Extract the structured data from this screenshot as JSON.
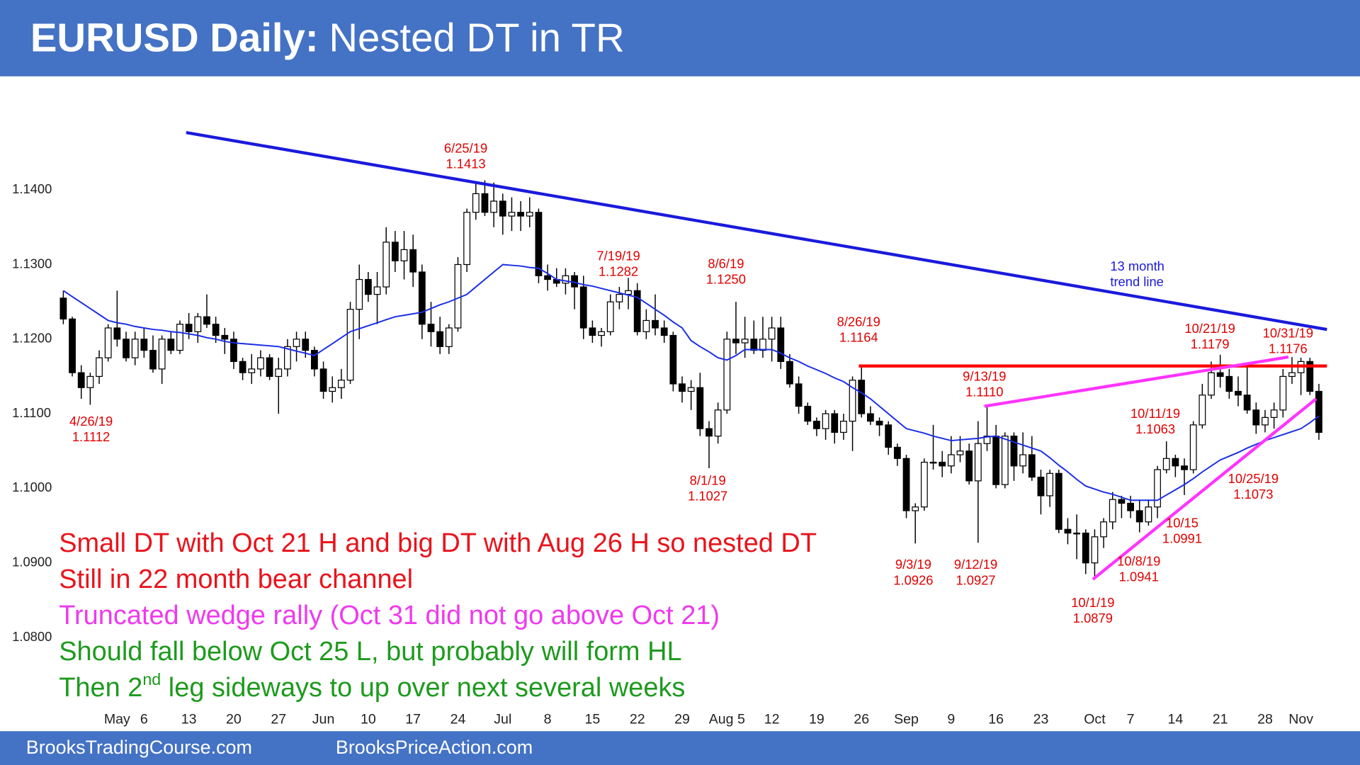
{
  "header": {
    "title_bold": "EURUSD Daily:",
    "title": "Nested DT in TR"
  },
  "footer": {
    "left": "BrooksTradingCourse.com",
    "right": "BrooksPriceAction.com"
  },
  "chart_data": {
    "type": "candlestick",
    "ylim": [
      1.071,
      1.154
    ],
    "yticks": [
      {
        "value": 1.14,
        "label": "1.1400"
      },
      {
        "value": 1.13,
        "label": "1.1300"
      },
      {
        "value": 1.12,
        "label": "1.1200"
      },
      {
        "value": 1.11,
        "label": "1.1100"
      },
      {
        "value": 1.1,
        "label": "1.1000"
      },
      {
        "value": 1.09,
        "label": "1.0900"
      },
      {
        "value": 1.08,
        "label": "1.0800"
      }
    ],
    "categories": [
      null,
      null,
      null,
      null,
      null,
      null,
      "May",
      null,
      null,
      "6",
      null,
      null,
      null,
      null,
      "13",
      null,
      null,
      null,
      null,
      "20",
      null,
      null,
      null,
      null,
      "27",
      null,
      null,
      null,
      null,
      "Jun",
      null,
      null,
      null,
      null,
      "10",
      null,
      null,
      null,
      null,
      "17",
      null,
      null,
      null,
      null,
      "24",
      null,
      null,
      null,
      null,
      "Jul",
      null,
      null,
      null,
      null,
      "8",
      null,
      null,
      null,
      null,
      "15",
      null,
      null,
      null,
      null,
      "22",
      null,
      null,
      null,
      null,
      "29",
      null,
      null,
      null,
      null,
      "Aug 5",
      null,
      null,
      null,
      null,
      "12",
      null,
      null,
      null,
      null,
      "19",
      null,
      null,
      null,
      null,
      "26",
      null,
      null,
      null,
      null,
      "Sep",
      null,
      null,
      null,
      null,
      "9",
      null,
      null,
      null,
      null,
      "16",
      null,
      null,
      null,
      null,
      "23",
      null,
      null,
      null,
      null,
      null,
      "Oct",
      null,
      null,
      null,
      "7",
      null,
      null,
      null,
      null,
      "14",
      null,
      null,
      null,
      null,
      "21",
      null,
      null,
      null,
      null,
      "28",
      null,
      null,
      null,
      "Nov",
      null,
      null
    ],
    "open": [
      1.1255,
      1.1227,
      1.1155,
      1.1135,
      1.115,
      1.1175,
      1.1215,
      1.12,
      1.1175,
      1.12,
      1.1185,
      1.116,
      1.12,
      1.1185,
      1.122,
      1.121,
      1.123,
      1.122,
      1.1205,
      1.12,
      1.117,
      1.1155,
      1.116,
      1.1175,
      1.115,
      1.116,
      1.119,
      1.12,
      1.1185,
      1.116,
      1.113,
      1.1135,
      1.1145,
      1.124,
      1.128,
      1.126,
      1.127,
      1.133,
      1.1305,
      1.132,
      1.129,
      1.122,
      1.121,
      1.119,
      1.1215,
      1.13,
      1.137,
      1.1395,
      1.137,
      1.1385,
      1.1365,
      1.137,
      1.1365,
      1.137,
      1.1285,
      1.128,
      1.1275,
      1.1285,
      1.127,
      1.1215,
      1.1205,
      1.121,
      1.125,
      1.126,
      1.1265,
      1.121,
      1.1225,
      1.1215,
      1.1205,
      1.114,
      1.113,
      1.1135,
      1.108,
      1.107,
      1.1105,
      1.12,
      1.1195,
      1.12,
      1.1185,
      1.12,
      1.1215,
      1.117,
      1.114,
      1.111,
      1.109,
      1.108,
      1.11,
      1.1075,
      1.109,
      1.1145,
      1.11,
      1.109,
      1.1085,
      1.1055,
      1.104,
      1.097,
      1.0975,
      1.1035,
      1.1035,
      1.103,
      1.1045,
      1.105,
      1.101,
      1.106,
      1.107,
      1.1005,
      1.107,
      1.103,
      1.1045,
      1.1015,
      1.099,
      1.102,
      1.0945,
      1.094,
      1.094,
      1.09,
      1.0935,
      1.0955,
      1.0985,
      1.098,
      1.097,
      1.0955,
      1.0975,
      1.1025,
      1.104,
      1.103,
      1.1025,
      1.1085,
      1.1125,
      1.1155,
      1.115,
      1.113,
      1.1125,
      1.1105,
      1.1085,
      1.1095,
      1.1105,
      1.115,
      1.1155,
      1.117,
      1.113
    ],
    "high": [
      1.1265,
      1.123,
      1.1165,
      1.1155,
      1.1185,
      1.122,
      1.1265,
      1.121,
      1.121,
      1.1215,
      1.1205,
      1.1205,
      1.121,
      1.1225,
      1.1235,
      1.1235,
      1.126,
      1.123,
      1.1215,
      1.121,
      1.1175,
      1.118,
      1.1185,
      1.118,
      1.1175,
      1.12,
      1.121,
      1.121,
      1.119,
      1.117,
      1.115,
      1.116,
      1.125,
      1.13,
      1.129,
      1.129,
      1.135,
      1.1345,
      1.1345,
      1.134,
      1.13,
      1.125,
      1.123,
      1.122,
      1.131,
      1.1375,
      1.141,
      1.1413,
      1.141,
      1.1395,
      1.139,
      1.1385,
      1.139,
      1.1375,
      1.13,
      1.1295,
      1.1295,
      1.129,
      1.1285,
      1.1225,
      1.1215,
      1.126,
      1.127,
      1.1282,
      1.1275,
      1.124,
      1.126,
      1.1225,
      1.121,
      1.115,
      1.1145,
      1.1155,
      1.109,
      1.1115,
      1.121,
      1.125,
      1.123,
      1.1225,
      1.123,
      1.123,
      1.123,
      1.118,
      1.115,
      1.1115,
      1.1095,
      1.1105,
      1.1105,
      1.11,
      1.115,
      1.1164,
      1.111,
      1.1095,
      1.109,
      1.106,
      1.1045,
      1.098,
      1.104,
      1.1085,
      1.105,
      1.107,
      1.107,
      1.106,
      1.109,
      1.111,
      1.1085,
      1.1075,
      1.1075,
      1.1075,
      1.107,
      1.1025,
      1.1025,
      1.1025,
      1.096,
      1.0965,
      1.0945,
      1.0945,
      1.096,
      1.0995,
      1.099,
      1.099,
      1.0985,
      1.0985,
      1.103,
      1.1063,
      1.1045,
      1.104,
      1.109,
      1.114,
      1.117,
      1.1179,
      1.116,
      1.115,
      1.1165,
      1.1115,
      1.1105,
      1.1115,
      1.116,
      1.1176,
      1.1175,
      1.1175,
      1.114
    ],
    "low": [
      1.122,
      1.115,
      1.112,
      1.1112,
      1.114,
      1.117,
      1.119,
      1.117,
      1.1165,
      1.1175,
      1.1155,
      1.114,
      1.118,
      1.118,
      1.12,
      1.1195,
      1.1215,
      1.1195,
      1.118,
      1.116,
      1.1145,
      1.114,
      1.115,
      1.1145,
      1.11,
      1.115,
      1.117,
      1.1175,
      1.115,
      1.112,
      1.1115,
      1.112,
      1.114,
      1.12,
      1.125,
      1.122,
      1.126,
      1.129,
      1.128,
      1.127,
      1.12,
      1.119,
      1.118,
      1.118,
      1.121,
      1.129,
      1.136,
      1.1365,
      1.135,
      1.134,
      1.1345,
      1.1345,
      1.135,
      1.1275,
      1.1265,
      1.127,
      1.126,
      1.124,
      1.12,
      1.1195,
      1.119,
      1.1205,
      1.124,
      1.124,
      1.1205,
      1.12,
      1.1205,
      1.1195,
      1.113,
      1.1115,
      1.1105,
      1.107,
      1.1027,
      1.106,
      1.11,
      1.118,
      1.1175,
      1.118,
      1.1175,
      1.117,
      1.116,
      1.1135,
      1.11,
      1.1085,
      1.107,
      1.1065,
      1.106,
      1.1065,
      1.105,
      1.1095,
      1.1085,
      1.107,
      1.1045,
      1.103,
      1.096,
      1.0926,
      1.097,
      1.1025,
      1.1015,
      1.102,
      1.1035,
      1.1005,
      1.0927,
      1.105,
      1.1,
      1.1,
      1.101,
      1.102,
      1.101,
      1.0965,
      1.0975,
      1.094,
      1.0925,
      1.0905,
      1.0885,
      1.0879,
      1.092,
      1.0945,
      1.096,
      1.096,
      1.0941,
      1.095,
      1.096,
      1.102,
      1.1015,
      1.0991,
      1.102,
      1.108,
      1.112,
      1.1135,
      1.112,
      1.111,
      1.11,
      1.1073,
      1.1075,
      1.108,
      1.1095,
      1.114,
      1.1125,
      1.1125,
      1.1065
    ],
    "close": [
      1.1227,
      1.1155,
      1.1135,
      1.115,
      1.1175,
      1.1215,
      1.12,
      1.1175,
      1.12,
      1.1185,
      1.116,
      1.12,
      1.1185,
      1.122,
      1.121,
      1.123,
      1.122,
      1.1205,
      1.12,
      1.117,
      1.1155,
      1.116,
      1.1175,
      1.115,
      1.116,
      1.119,
      1.12,
      1.1185,
      1.116,
      1.113,
      1.1135,
      1.1145,
      1.124,
      1.128,
      1.126,
      1.127,
      1.133,
      1.1305,
      1.132,
      1.129,
      1.122,
      1.121,
      1.119,
      1.1215,
      1.13,
      1.137,
      1.1395,
      1.137,
      1.1385,
      1.1365,
      1.137,
      1.1365,
      1.137,
      1.1285,
      1.128,
      1.1275,
      1.1285,
      1.127,
      1.1215,
      1.1205,
      1.121,
      1.125,
      1.126,
      1.1265,
      1.121,
      1.1225,
      1.1215,
      1.1205,
      1.114,
      1.113,
      1.1135,
      1.108,
      1.107,
      1.1105,
      1.12,
      1.1195,
      1.12,
      1.1185,
      1.12,
      1.1215,
      1.117,
      1.114,
      1.111,
      1.109,
      1.108,
      1.11,
      1.1075,
      1.109,
      1.1145,
      1.11,
      1.109,
      1.1085,
      1.1055,
      1.104,
      1.097,
      1.0975,
      1.1035,
      1.1035,
      1.103,
      1.1045,
      1.105,
      1.101,
      1.106,
      1.107,
      1.1005,
      1.107,
      1.103,
      1.1045,
      1.1015,
      1.099,
      1.102,
      1.0945,
      1.094,
      1.094,
      1.09,
      1.0935,
      1.0955,
      1.0985,
      1.098,
      1.097,
      1.0955,
      1.0975,
      1.1025,
      1.104,
      1.103,
      1.1025,
      1.1085,
      1.1125,
      1.1155,
      1.115,
      1.113,
      1.1125,
      1.1105,
      1.1085,
      1.1095,
      1.1105,
      1.115,
      1.1155,
      1.117,
      1.113,
      1.1075
    ],
    "moving_average": {
      "color": "#1a2ee6",
      "values": [
        1.1265,
        1.1257,
        1.1249,
        1.1241,
        1.1233,
        1.1225,
        1.1222,
        1.122,
        1.1217,
        1.1215,
        1.1213,
        1.1212,
        1.121,
        1.1209,
        1.1207,
        1.1205,
        1.1202,
        1.12,
        1.1197,
        1.1195,
        1.1194,
        1.1193,
        1.1192,
        1.1191,
        1.119,
        1.1187,
        1.1184,
        1.1181,
        1.1178,
        1.1186,
        1.1194,
        1.1202,
        1.121,
        1.1214,
        1.1218,
        1.1222,
        1.1226,
        1.123,
        1.1232,
        1.1234,
        1.1236,
        1.1241,
        1.1246,
        1.125,
        1.1255,
        1.126,
        1.127,
        1.128,
        1.129,
        1.13,
        1.1299,
        1.1298,
        1.1296,
        1.1295,
        1.1288,
        1.128,
        1.1278,
        1.1276,
        1.1273,
        1.1271,
        1.1268,
        1.1265,
        1.1262,
        1.1259,
        1.1256,
        1.1248,
        1.124,
        1.1232,
        1.1223,
        1.1215,
        1.1198,
        1.119,
        1.1183,
        1.1175,
        1.1172,
        1.1178,
        1.1186,
        1.1186,
        1.1186,
        1.1186,
        1.1181,
        1.1175,
        1.117,
        1.1164,
        1.1159,
        1.1154,
        1.1148,
        1.1143,
        1.1135,
        1.1128,
        1.112,
        1.111,
        1.11,
        1.109,
        1.108,
        1.1077,
        1.1074,
        1.107,
        1.1067,
        1.1064,
        1.1065,
        1.1066,
        1.1067,
        1.1069,
        1.107,
        1.1066,
        1.1062,
        1.1058,
        1.1054,
        1.105,
        1.1041,
        1.1031,
        1.1022,
        1.1012,
        1.1003,
        1.0999,
        1.0995,
        1.0992,
        1.0988,
        1.0984,
        1.0984,
        1.0984,
        1.0984,
        1.0991,
        1.0998,
        1.1005,
        1.1013,
        1.1022,
        1.103,
        1.1038,
        1.1043,
        1.1048,
        1.1054,
        1.1059,
        1.1064,
        1.1068,
        1.1072,
        1.1076,
        1.108,
        1.1088,
        1.1097
      ]
    },
    "lines": [
      {
        "color": "#1a1adc",
        "x": [
          13.7,
          140.9
        ],
        "y": [
          1.1477,
          1.1213
        ]
      },
      {
        "color": "#ff0000",
        "x": [
          88.7,
          140.9
        ],
        "y": [
          1.1164,
          1.1164
        ]
      },
      {
        "color": "#ff33ff",
        "x": [
          102.7,
          136.6
        ],
        "y": [
          1.111,
          1.1176
        ]
      },
      {
        "color": "#ff33ff",
        "x": [
          114.8,
          139.7
        ],
        "y": [
          1.0878,
          1.112
        ]
      }
    ],
    "annotations": [
      {
        "date": "4/26/19",
        "price": 1.1112
      },
      {
        "date": "6/25/19",
        "price": 1.1413
      },
      {
        "date": "7/19/19",
        "price": 1.1282
      },
      {
        "date": "8/6/19",
        "price": {
          "value": 1.125,
          "label": "1.1250"
        }
      },
      {
        "date": "8/1/19",
        "price": 1.1027
      },
      {
        "date": "8/26/19",
        "price": 1.1164
      },
      {
        "date": "9/13/19",
        "price": {
          "value": 1.111,
          "label": "1.1110"
        }
      },
      {
        "date": "9/3/19",
        "price": 1.0926
      },
      {
        "date": "9/12/19",
        "price": 1.0927
      },
      {
        "date": "10/21/19",
        "price": 1.1179
      },
      {
        "date": "10/31/19",
        "price": 1.1176
      },
      {
        "date": "10/11/19",
        "price": 1.1063
      },
      {
        "date": "10/15",
        "price": 1.0991
      },
      {
        "date": "10/25/19",
        "price": 1.1073
      },
      {
        "date": "10/8/19",
        "price": 1.0941
      },
      {
        "date": "10/1/19",
        "price": 1.0879
      }
    ],
    "trend_line_note": [
      "13 month",
      "trend line"
    ],
    "commentary": [
      {
        "color": "#e8141c",
        "parts": [
          "Small DT with Oct 21 H and big DT with Aug 26 H so nested DT"
        ]
      },
      {
        "color": "#e8141c",
        "parts": [
          "Still in 22 month bear channel"
        ]
      },
      {
        "color": "#ee3aee",
        "parts": [
          "Truncated wedge rally (Oct 31 did not go above Oct 21)"
        ]
      },
      {
        "color": "#1e9a1e",
        "parts": [
          "Should fall below Oct 25 L, but probably will form HL"
        ]
      },
      {
        "color": "#1e9a1e",
        "parts": [
          "Then 2",
          "nd",
          " leg sideways to up over next several weeks"
        ],
        "superscript_part": 1
      }
    ]
  }
}
